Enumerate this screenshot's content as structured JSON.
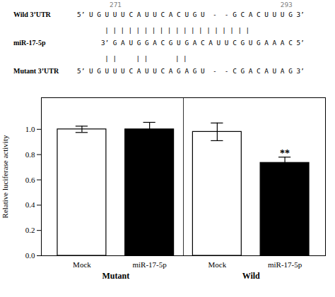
{
  "chart_data": {
    "type": "bar",
    "ylabel": "Relative luciferase activity",
    "categories": [
      "Mock",
      "miR-17-5p",
      "Mock",
      "miR-17-5p"
    ],
    "groups": [
      "Mutant",
      "Wild"
    ],
    "values": [
      1.0,
      1.0,
      0.98,
      0.735
    ],
    "errors": [
      0.025,
      0.055,
      0.07,
      0.045
    ],
    "colors": [
      "white",
      "black",
      "white",
      "black"
    ],
    "ylim": [
      0,
      1.25
    ],
    "yticks": [
      {
        "value": 0,
        "label": "0.0"
      },
      0.2,
      0.4,
      0.6,
      0.8,
      {
        "value": 1,
        "label": "1.0"
      }
    ],
    "annotations": [
      {
        "text": "**",
        "index": 3,
        "y": 0.785
      }
    ],
    "alignment": {
      "positions": [
        271,
        293
      ],
      "rows": [
        {
          "label": "Wild 3’UTR",
          "sequence": "5’ U G U U U C A U U C A C U G U  -  - G C A C U U U G 3’"
        },
        {
          "pairs": "| | | | | | | | | | | | | | | | | | |"
        },
        {
          "label": "miR-17-5p",
          "sequence": "      3’ G A U G G A C G U G A C A U U C G U G A A A C 5’"
        },
        {
          "pairs": "| |     | |       | |"
        },
        {
          "label": "Mutant 3’UTR",
          "sequence": "5’ U G U U U C A U U C A G A G U  -  - C G A C A U A G 3’"
        }
      ]
    }
  }
}
